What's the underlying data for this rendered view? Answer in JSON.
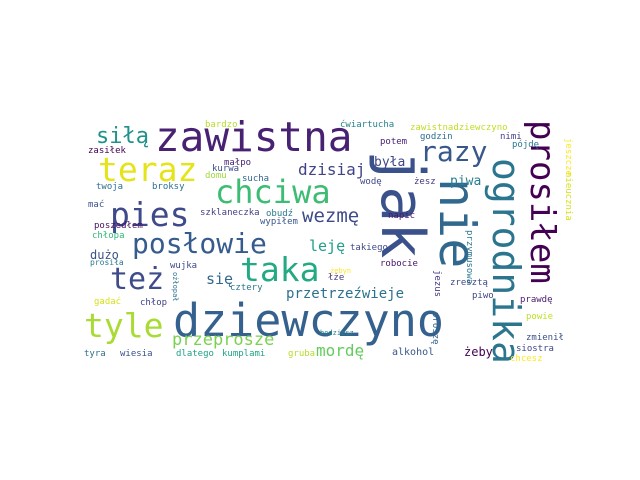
{
  "words": [
    {
      "text": "jak",
      "color": "#3b518b",
      "v": true
    },
    {
      "text": "dziewczyno",
      "color": "#34618d"
    },
    {
      "text": "zawistna",
      "color": "#482173"
    },
    {
      "text": "nie",
      "color": "#31688e",
      "v": true
    },
    {
      "text": "ogrodnika",
      "color": "#2b758e",
      "v": true
    },
    {
      "text": "prosiłem",
      "color": "#440154",
      "v": true
    },
    {
      "text": "posłowie",
      "color": "#365c8d"
    },
    {
      "text": "chciwa",
      "color": "#3dbc74"
    },
    {
      "text": "pies",
      "color": "#3e4a89"
    },
    {
      "text": "taka",
      "color": "#23a983"
    },
    {
      "text": "tyle",
      "color": "#a8db34"
    },
    {
      "text": "teraz",
      "color": "#e5e419"
    },
    {
      "text": "też",
      "color": "#3e4c8a"
    },
    {
      "text": "razy",
      "color": "#38588c"
    },
    {
      "text": "siłą",
      "color": "#20928c"
    },
    {
      "text": "wezmę",
      "color": "#3e4a89"
    },
    {
      "text": "przeprosze",
      "color": "#7ad151"
    },
    {
      "text": "dzisiaj",
      "color": "#404387"
    },
    {
      "text": "przetrzeźwieje",
      "color": "#2c718e"
    },
    {
      "text": "mordę",
      "color": "#65cb5e"
    },
    {
      "text": "leję",
      "color": "#1f9e89"
    },
    {
      "text": "się",
      "color": "#31688e"
    },
    {
      "text": "była",
      "color": "#3f4788"
    },
    {
      "text": "piwa",
      "color": "#277f8e"
    },
    {
      "text": "zawistnadziewczyno",
      "color": "#bddf26"
    },
    {
      "text": "ćwiartucha",
      "color": "#26828e"
    },
    {
      "text": "bardzo",
      "color": "#b5de2b"
    },
    {
      "text": "zasiłek",
      "color": "#440154"
    },
    {
      "text": "małpo",
      "color": "#482576"
    },
    {
      "text": "domu",
      "color": "#9fda3a"
    },
    {
      "text": "kurwa",
      "color": "#3d4e8a"
    },
    {
      "text": "sucha",
      "color": "#32658e"
    },
    {
      "text": "twoja",
      "color": "#2d708e"
    },
    {
      "text": "broksy",
      "color": "#2e6e8e"
    },
    {
      "text": "wodę",
      "color": "#3e4989"
    },
    {
      "text": "żesz",
      "color": "#443983"
    },
    {
      "text": "potem",
      "color": "#482475"
    },
    {
      "text": "godzin",
      "color": "#2e6f8e"
    },
    {
      "text": "nimi",
      "color": "#433e85"
    },
    {
      "text": "pójdę",
      "color": "#2a788e"
    },
    {
      "text": "jeszcze",
      "color": "#fde725",
      "v": true
    },
    {
      "text": "mać",
      "color": "#3b528b"
    },
    {
      "text": "szklaneczka",
      "color": "#424186"
    },
    {
      "text": "obudź",
      "color": "#287c8e"
    },
    {
      "text": "wypiłem",
      "color": "#38598c"
    },
    {
      "text": "napić",
      "color": "#48186a"
    },
    {
      "text": "nieucznia",
      "color": "#d8e219",
      "v": true
    },
    {
      "text": "poszedłem",
      "color": "#471063"
    },
    {
      "text": "chłopa",
      "color": "#32b67a"
    },
    {
      "text": "dużo",
      "color": "#3b528b"
    },
    {
      "text": "takiego",
      "color": "#3e4989"
    },
    {
      "text": "prosiła",
      "color": "#2a788e"
    },
    {
      "text": "wujka",
      "color": "#3e4a89"
    },
    {
      "text": "przymusowa",
      "color": "#2a788e",
      "v": true
    },
    {
      "text": "robocie",
      "color": "#471365"
    },
    {
      "text": "łże",
      "color": "#443a83"
    },
    {
      "text": "żebyn",
      "color": "#fde725"
    },
    {
      "text": "zresztą",
      "color": "#3e4989"
    },
    {
      "text": "ożłopał",
      "color": "#2c728e",
      "v": true
    },
    {
      "text": "gadać",
      "color": "#d8e219"
    },
    {
      "text": "chłop",
      "color": "#424086"
    },
    {
      "text": "cztery",
      "color": "#2a788e"
    },
    {
      "text": "jezus",
      "color": "#453781",
      "v": true
    },
    {
      "text": "piwo",
      "color": "#414487"
    },
    {
      "text": "prawdę",
      "color": "#481b6d"
    },
    {
      "text": "proszę",
      "color": "#32648e",
      "v": true
    },
    {
      "text": "powie",
      "color": "#bddf26"
    },
    {
      "text": "zmienił",
      "color": "#3d4e8a"
    },
    {
      "text": "będziesz",
      "color": "#25848e"
    },
    {
      "text": "siostra",
      "color": "#3f4788"
    },
    {
      "text": "tyra",
      "color": "#2d708e"
    },
    {
      "text": "wiesia",
      "color": "#3b528b"
    },
    {
      "text": "dlatego",
      "color": "#1fa187"
    },
    {
      "text": "kumplami",
      "color": "#20a386"
    },
    {
      "text": "gruba",
      "color": "#b5de2b"
    },
    {
      "text": "alkohol",
      "color": "#39568c"
    },
    {
      "text": "żeby",
      "color": "#440154"
    },
    {
      "text": "chcesz",
      "color": "#fde725"
    }
  ]
}
